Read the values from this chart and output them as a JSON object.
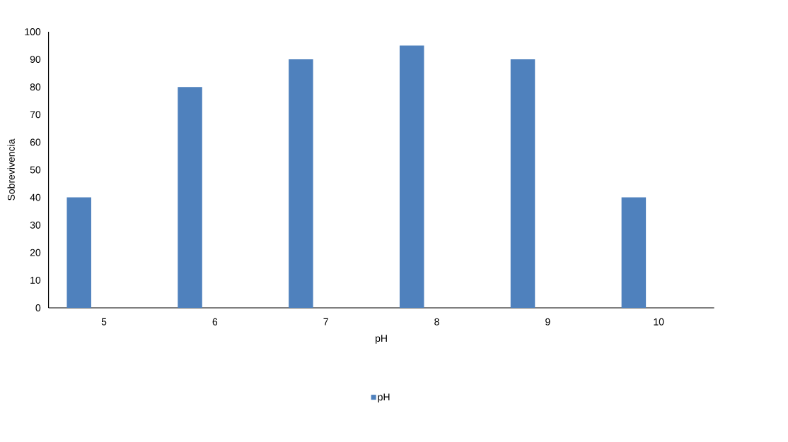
{
  "chart_data": {
    "type": "bar",
    "xlabel": "pH",
    "ylabel": "Sobrevivencia",
    "categories": [
      "5",
      "6",
      "7",
      "8",
      "9",
      "10"
    ],
    "series": [
      {
        "name": "pH",
        "color": "#4f81bd",
        "values": [
          40,
          80,
          90,
          95,
          90,
          40
        ]
      }
    ],
    "ylim": [
      0,
      100
    ],
    "yticks": [
      0,
      10,
      20,
      30,
      40,
      50,
      60,
      70,
      80,
      90,
      100
    ],
    "grid": false,
    "legend": "bottom"
  }
}
